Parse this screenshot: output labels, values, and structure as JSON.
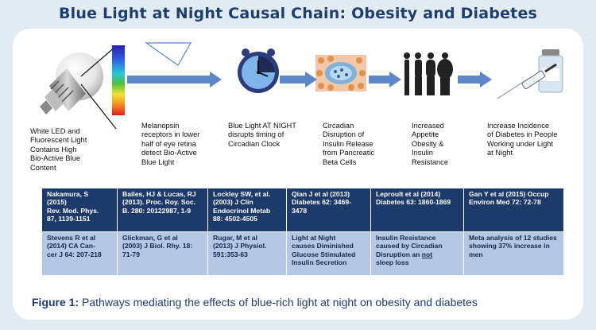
{
  "title": "Blue Light at Night Causal Chain: Obesity and Diabetes",
  "steps": [
    {
      "text": "White LED and\nFluorescent Light\nContains High\nBio-Active Blue\nContent",
      "icon": "led-bulb-icon"
    },
    {
      "text": "Melanopsin\nreceptors in lower\nhalf of eye retina\ndetect Bio-Active\nBlue Light",
      "icon": "light-spectrum-icon"
    },
    {
      "text": "Blue Light AT NIGHT\ndisrupts timing of\nCircadian Clock",
      "icon": "clock-icon"
    },
    {
      "text": "Circadian\nDisruption of\nInsulin Release\nfrom Pancreatic\nBeta Cells",
      "icon": "pancreatic-cells-icon"
    },
    {
      "text": "Increased\nAppetite\nObesity &\nInsulin\nResistance",
      "icon": "weight-gain-silhouettes-icon"
    },
    {
      "text": "Increase Incidence\nof Diabetes in People\nWorking under Light\nat Night",
      "icon": "insulin-syringe-icon"
    }
  ],
  "references": {
    "row1": [
      "Nakamura, S\n(2015)\nRev. Mod. Phys.\n87, 1139-1151",
      "Bailes, HJ & Lucas, RJ\n(2013). Proc. Roy. Soc.\nB. 280: 20122987, 1-9",
      "Lockley SW, et al.\n(2003) J Clin\nEndocrinol Metab\n88: 4502-4505",
      "Qian J et al (2013)\nDiabetes 62: 3469-\n3478",
      "Leproult et al (2014)\nDiabetes 63: 1860-1869",
      "Gan Y et al (2015) Occup\nEnviron Med 72: 72-78"
    ],
    "row2": [
      "Stevens R et al\n(2014) CA Can-\ncer J 64: 207-218",
      "Glickman, G et al\n(2003) J Biol. Rhy. 18:\n71-79",
      "Rugar, M et al\n(2013) J Physiol.\n591:353-63",
      "Light at Night\ncauses Diminished\nGlucose Stimulated\nInsulin Secretion",
      "Insulin Resistance\ncaused by Circadian\nDisruption an ",
      "Meta analysis of 12 studies\nshowing 37% increase in\nmen"
    ],
    "row2_col5_underlined": "not",
    "row2_col5_tail": "\nsleep loss"
  },
  "caption": {
    "label": "Figure 1:",
    "text": " Pathways mediating the effects of blue-rich light at night on obesity and diabetes"
  },
  "colors": {
    "title": "#1d3f6c",
    "arrow": "#5f86c8",
    "table_dark": "#1c3a6a",
    "table_light": "#b4c8e6"
  }
}
